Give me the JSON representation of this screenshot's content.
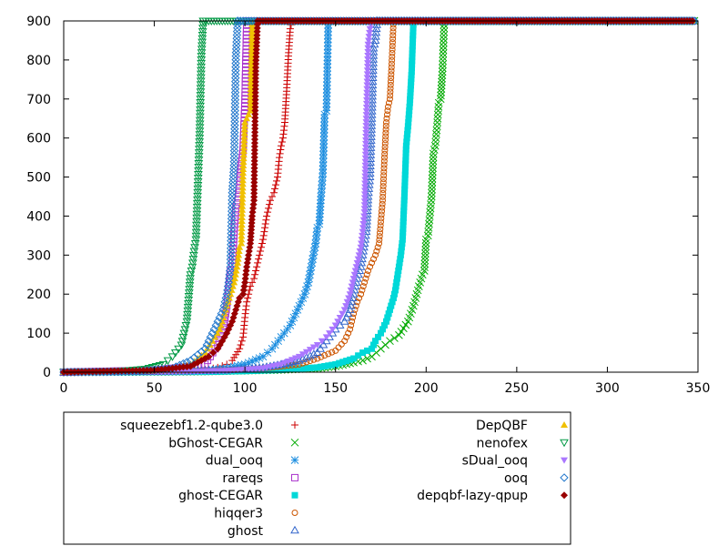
{
  "chart_data": {
    "type": "scatter",
    "title": "",
    "xlabel": "",
    "ylabel": "",
    "xlim": [
      0,
      350
    ],
    "ylim": [
      0,
      900
    ],
    "xticks": [
      "0",
      "50",
      "100",
      "150",
      "200",
      "250",
      "300",
      "350"
    ],
    "yticks": [
      "0",
      "100",
      "200",
      "300",
      "400",
      "500",
      "600",
      "700",
      "800",
      "900"
    ],
    "grid": false,
    "legend_position": "bottom",
    "timeout_value": 900,
    "series": [
      {
        "name": "squeezebf1.2-qube3.0",
        "marker": "plus",
        "color": "#cc0000",
        "points": [
          [
            0,
            0
          ],
          [
            40,
            1
          ],
          [
            60,
            2
          ],
          [
            70,
            4
          ],
          [
            80,
            8
          ],
          [
            85,
            12
          ],
          [
            90,
            20
          ],
          [
            93,
            30
          ],
          [
            95,
            45
          ],
          [
            97,
            60
          ],
          [
            99,
            90
          ],
          [
            100,
            140
          ],
          [
            101,
            180
          ],
          [
            102,
            200
          ],
          [
            103,
            220
          ],
          [
            105,
            240
          ],
          [
            106,
            260
          ],
          [
            107,
            280
          ],
          [
            108,
            300
          ],
          [
            109,
            320
          ],
          [
            110,
            340
          ],
          [
            112,
            400
          ],
          [
            114,
            440
          ],
          [
            116,
            460
          ],
          [
            118,
            500
          ],
          [
            119,
            550
          ],
          [
            120,
            580
          ],
          [
            121,
            600
          ],
          [
            122,
            640
          ],
          [
            123,
            720
          ],
          [
            124,
            810
          ],
          [
            125,
            880
          ],
          [
            126,
            900
          ]
        ]
      },
      {
        "name": "bGhost-CEGAR",
        "marker": "x",
        "color": "#00aa00",
        "points": [
          [
            0,
            0
          ],
          [
            60,
            1
          ],
          [
            80,
            2
          ],
          [
            100,
            4
          ],
          [
            120,
            6
          ],
          [
            140,
            10
          ],
          [
            150,
            15
          ],
          [
            160,
            25
          ],
          [
            165,
            30
          ],
          [
            170,
            40
          ],
          [
            175,
            60
          ],
          [
            180,
            80
          ],
          [
            185,
            95
          ],
          [
            190,
            130
          ],
          [
            193,
            170
          ],
          [
            196,
            220
          ],
          [
            198,
            250
          ],
          [
            199,
            260
          ],
          [
            200,
            340
          ],
          [
            201,
            350
          ],
          [
            202,
            400
          ],
          [
            203,
            450
          ],
          [
            204,
            560
          ],
          [
            205,
            580
          ],
          [
            206,
            630
          ],
          [
            207,
            690
          ],
          [
            208,
            700
          ],
          [
            209,
            770
          ],
          [
            210,
            900
          ]
        ]
      },
      {
        "name": "dual_ooq",
        "marker": "star",
        "color": "#1f8fe0",
        "points": [
          [
            0,
            0
          ],
          [
            60,
            2
          ],
          [
            80,
            5
          ],
          [
            90,
            10
          ],
          [
            100,
            20
          ],
          [
            110,
            40
          ],
          [
            115,
            60
          ],
          [
            120,
            90
          ],
          [
            125,
            120
          ],
          [
            130,
            170
          ],
          [
            133,
            200
          ],
          [
            135,
            230
          ],
          [
            137,
            280
          ],
          [
            139,
            330
          ],
          [
            140,
            370
          ],
          [
            141,
            380
          ],
          [
            142,
            450
          ],
          [
            143,
            510
          ],
          [
            144,
            660
          ],
          [
            145,
            670
          ],
          [
            146,
            900
          ]
        ]
      },
      {
        "name": "rareqs",
        "marker": "square",
        "color": "#aa33cc",
        "points": [
          [
            0,
            0
          ],
          [
            50,
            5
          ],
          [
            70,
            15
          ],
          [
            78,
            20
          ],
          [
            85,
            70
          ],
          [
            88,
            110
          ],
          [
            90,
            170
          ],
          [
            91,
            210
          ],
          [
            92,
            260
          ],
          [
            93,
            270
          ],
          [
            94,
            360
          ],
          [
            95,
            420
          ],
          [
            96,
            440
          ],
          [
            97,
            470
          ],
          [
            98,
            530
          ],
          [
            99,
            570
          ],
          [
            100,
            690
          ],
          [
            101,
            900
          ]
        ]
      },
      {
        "name": "ghost-CEGAR",
        "marker": "filled-square",
        "color": "#00d8d8",
        "points": [
          [
            0,
            0
          ],
          [
            80,
            1
          ],
          [
            100,
            3
          ],
          [
            120,
            6
          ],
          [
            140,
            12
          ],
          [
            150,
            20
          ],
          [
            160,
            35
          ],
          [
            165,
            50
          ],
          [
            170,
            60
          ],
          [
            172,
            80
          ],
          [
            175,
            100
          ],
          [
            178,
            130
          ],
          [
            180,
            160
          ],
          [
            182,
            190
          ],
          [
            183,
            210
          ],
          [
            184,
            240
          ],
          [
            185,
            270
          ],
          [
            186,
            300
          ],
          [
            187,
            340
          ],
          [
            188,
            450
          ],
          [
            189,
            580
          ],
          [
            190,
            630
          ],
          [
            191,
            690
          ],
          [
            192,
            770
          ],
          [
            193,
            900
          ]
        ]
      },
      {
        "name": "hiqqer3",
        "marker": "circle",
        "color": "#cc5500",
        "points": [
          [
            0,
            0
          ],
          [
            60,
            2
          ],
          [
            90,
            5
          ],
          [
            110,
            10
          ],
          [
            130,
            20
          ],
          [
            140,
            35
          ],
          [
            150,
            55
          ],
          [
            155,
            80
          ],
          [
            158,
            110
          ],
          [
            160,
            150
          ],
          [
            162,
            180
          ],
          [
            164,
            200
          ],
          [
            166,
            230
          ],
          [
            168,
            260
          ],
          [
            170,
            280
          ],
          [
            172,
            300
          ],
          [
            174,
            330
          ],
          [
            176,
            440
          ],
          [
            177,
            550
          ],
          [
            178,
            640
          ],
          [
            179,
            680
          ],
          [
            180,
            700
          ],
          [
            181,
            790
          ],
          [
            182,
            900
          ]
        ]
      },
      {
        "name": "ghost",
        "marker": "triangle",
        "color": "#3366cc",
        "points": [
          [
            0,
            0
          ],
          [
            60,
            2
          ],
          [
            90,
            5
          ],
          [
            110,
            12
          ],
          [
            120,
            20
          ],
          [
            130,
            30
          ],
          [
            140,
            50
          ],
          [
            145,
            80
          ],
          [
            150,
            110
          ],
          [
            155,
            130
          ],
          [
            158,
            160
          ],
          [
            160,
            200
          ],
          [
            162,
            240
          ],
          [
            164,
            270
          ],
          [
            165,
            300
          ],
          [
            166,
            330
          ],
          [
            167,
            360
          ],
          [
            168,
            450
          ],
          [
            169,
            500
          ],
          [
            170,
            650
          ],
          [
            171,
            830
          ],
          [
            172,
            850
          ],
          [
            173,
            900
          ]
        ]
      },
      {
        "name": "DepQBF",
        "marker": "filled-triangle",
        "color": "#f0c000",
        "points": [
          [
            0,
            0
          ],
          [
            40,
            2
          ],
          [
            60,
            8
          ],
          [
            70,
            20
          ],
          [
            78,
            50
          ],
          [
            82,
            80
          ],
          [
            86,
            110
          ],
          [
            88,
            140
          ],
          [
            90,
            170
          ],
          [
            92,
            200
          ],
          [
            94,
            230
          ],
          [
            96,
            280
          ],
          [
            97,
            320
          ],
          [
            98,
            330
          ],
          [
            99,
            520
          ],
          [
            100,
            640
          ],
          [
            101,
            650
          ],
          [
            102,
            660
          ],
          [
            103,
            670
          ],
          [
            104,
            900
          ]
        ]
      },
      {
        "name": "nenofex",
        "marker": "inv-triangle",
        "color": "#009944",
        "points": [
          [
            0,
            0
          ],
          [
            30,
            2
          ],
          [
            45,
            8
          ],
          [
            55,
            20
          ],
          [
            60,
            40
          ],
          [
            65,
            70
          ],
          [
            68,
            130
          ],
          [
            70,
            250
          ],
          [
            71,
            270
          ],
          [
            72,
            310
          ],
          [
            73,
            340
          ],
          [
            74,
            470
          ],
          [
            75,
            600
          ],
          [
            76,
            810
          ],
          [
            77,
            900
          ]
        ]
      },
      {
        "name": "sDual_ooq",
        "marker": "filled-inv-triangle",
        "color": "#aa77ff",
        "points": [
          [
            0,
            0
          ],
          [
            60,
            1
          ],
          [
            90,
            4
          ],
          [
            110,
            10
          ],
          [
            120,
            20
          ],
          [
            130,
            40
          ],
          [
            140,
            70
          ],
          [
            145,
            90
          ],
          [
            150,
            120
          ],
          [
            155,
            160
          ],
          [
            158,
            200
          ],
          [
            160,
            240
          ],
          [
            162,
            280
          ],
          [
            164,
            320
          ],
          [
            165,
            360
          ],
          [
            166,
            410
          ],
          [
            167,
            650
          ],
          [
            168,
            840
          ],
          [
            169,
            880
          ],
          [
            170,
            900
          ]
        ]
      },
      {
        "name": "ooq",
        "marker": "diamond",
        "color": "#2277cc",
        "points": [
          [
            0,
            0
          ],
          [
            40,
            2
          ],
          [
            60,
            10
          ],
          [
            70,
            30
          ],
          [
            78,
            60
          ],
          [
            82,
            100
          ],
          [
            85,
            130
          ],
          [
            88,
            160
          ],
          [
            90,
            200
          ],
          [
            91,
            230
          ],
          [
            92,
            270
          ],
          [
            93,
            460
          ],
          [
            94,
            530
          ],
          [
            95,
            810
          ],
          [
            96,
            900
          ]
        ]
      },
      {
        "name": "depqbf-lazy-qpup",
        "marker": "filled-diamond",
        "color": "#990000",
        "points": [
          [
            0,
            0
          ],
          [
            50,
            5
          ],
          [
            70,
            15
          ],
          [
            80,
            40
          ],
          [
            85,
            60
          ],
          [
            90,
            100
          ],
          [
            93,
            130
          ],
          [
            95,
            160
          ],
          [
            97,
            190
          ],
          [
            99,
            200
          ],
          [
            100,
            230
          ],
          [
            101,
            270
          ],
          [
            102,
            300
          ],
          [
            103,
            330
          ],
          [
            104,
            400
          ],
          [
            105,
            440
          ],
          [
            106,
            790
          ],
          [
            107,
            900
          ]
        ]
      }
    ]
  }
}
